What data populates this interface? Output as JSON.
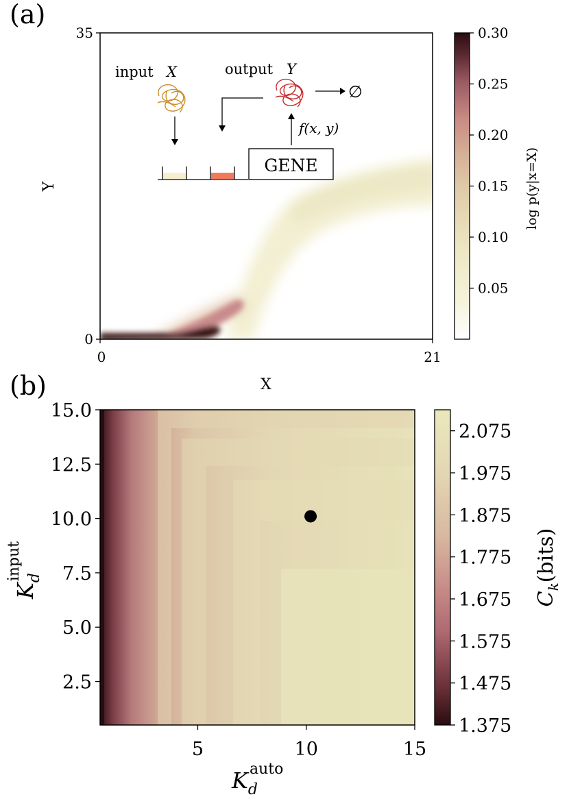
{
  "colors": {
    "cmap": [
      "#ffffff",
      "#f5f1d8",
      "#ece7c0",
      "#e2d4ae",
      "#d6b59a",
      "#c98a84",
      "#a8626a",
      "#6a3038",
      "#2a0c10"
    ]
  },
  "chart_data": [
    {
      "type": "heatmap",
      "panel_label": "(a)",
      "xlabel": "X",
      "ylabel": "Y",
      "xlim": [
        0,
        21
      ],
      "ylim": [
        0,
        35
      ],
      "xtick_labels": [
        "0",
        "21"
      ],
      "ytick_labels": [
        "0",
        "35"
      ],
      "colorbar": {
        "label": "log p(y|x=X)",
        "range": [
          0.0,
          0.3
        ],
        "tick_labels": [
          "0.30",
          "0.25",
          "0.20",
          "0.15",
          "0.10",
          "0.05"
        ],
        "tick_values": [
          0.3,
          0.25,
          0.2,
          0.15,
          0.1,
          0.05
        ]
      },
      "inset": {
        "input_label": "input",
        "input_var": "X",
        "output_label": "output",
        "output_var": "Y",
        "gene_label": "GENE",
        "rate_label": "f(x, y)",
        "degradation": "∅",
        "input_color": "#c98f2a",
        "output_color": "#c62b2b",
        "input_site_color": "#f6efcf",
        "output_site_color": "#f07a5c"
      }
    },
    {
      "type": "heatmap",
      "panel_label": "(b)",
      "xlabel": "K_d^auto",
      "ylabel": "K_d^input",
      "xlim": [
        0.5,
        15
      ],
      "ylim": [
        0.5,
        15
      ],
      "xtick_values": [
        5,
        10,
        15
      ],
      "xtick_labels": [
        "5",
        "10",
        "15"
      ],
      "ytick_values": [
        15.0,
        12.5,
        10.0,
        7.5,
        5.0,
        2.5
      ],
      "ytick_labels": [
        "15.0",
        "12.5",
        "10.0",
        "7.5",
        "5.0",
        "2.5"
      ],
      "optimum": {
        "x": 10.2,
        "y": 10.1
      },
      "colorbar": {
        "label": "C_k (bits)",
        "range": [
          1.375,
          2.125
        ],
        "tick_labels": [
          "2.075",
          "1.975",
          "1.875",
          "1.775",
          "1.675",
          "1.575",
          "1.475",
          "1.375"
        ],
        "tick_values": [
          2.075,
          1.975,
          1.875,
          1.775,
          1.675,
          1.575,
          1.475,
          1.375
        ]
      }
    }
  ]
}
